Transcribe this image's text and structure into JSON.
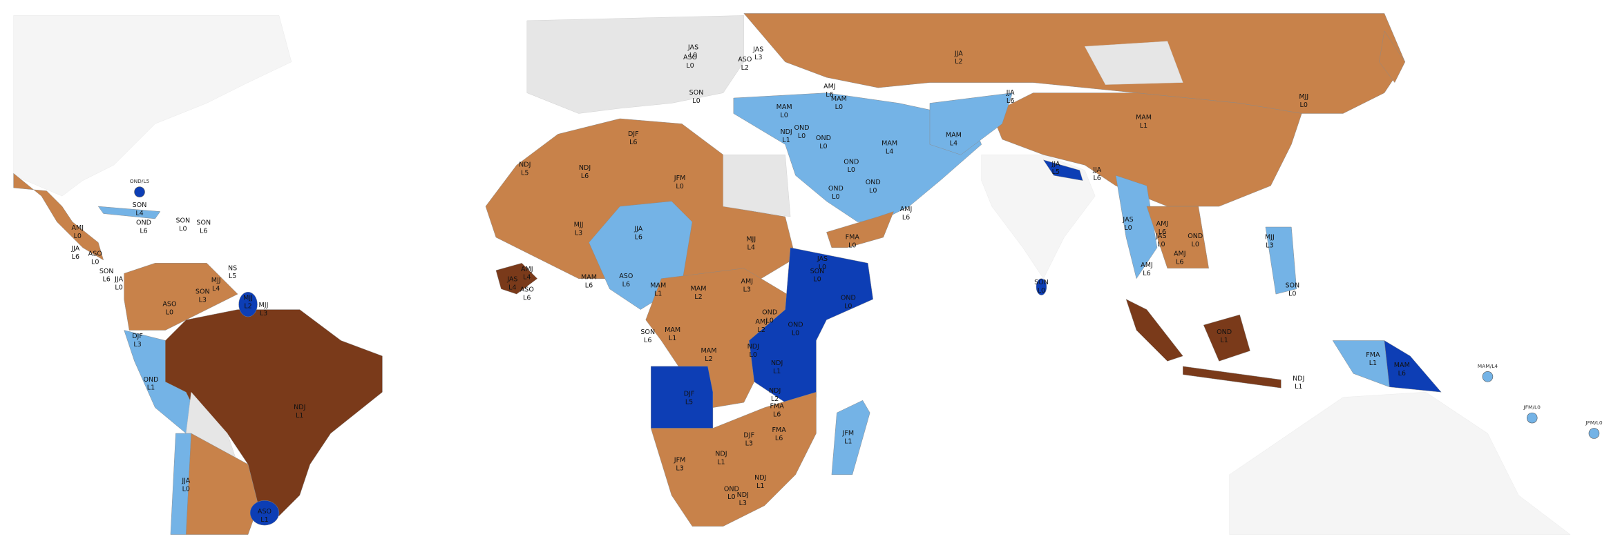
{
  "map_labels": [
    {
      "season": "JAS",
      "level": "L0"
    },
    {
      "season": "ASO",
      "level": "L0"
    },
    {
      "season": "JAS",
      "level": "L3"
    },
    {
      "season": "ASO",
      "level": "L2"
    },
    {
      "season": "JJA",
      "level": "L2"
    },
    {
      "season": "SON",
      "level": "L0"
    },
    {
      "season": "AMJ",
      "level": "L6"
    },
    {
      "season": "MAM",
      "level": "L0"
    },
    {
      "season": "MAM",
      "level": "L0"
    },
    {
      "season": "JJA",
      "level": "L6"
    },
    {
      "season": "MJJ",
      "level": "L0"
    },
    {
      "season": "MAM",
      "level": "L1"
    },
    {
      "season": "NDJ",
      "level": "L1"
    },
    {
      "season": "OND",
      "level": "L0"
    },
    {
      "season": "OND",
      "level": "L0"
    },
    {
      "season": "MAM",
      "level": "L4"
    },
    {
      "season": "MAM",
      "level": "L4"
    },
    {
      "season": "DJF",
      "level": "L6"
    },
    {
      "season": "NDJ",
      "level": "L5"
    },
    {
      "season": "NDJ",
      "level": "L6"
    },
    {
      "season": "JFM",
      "level": "L0"
    },
    {
      "season": "OND",
      "level": "L0"
    },
    {
      "season": "OND",
      "level": "L0"
    },
    {
      "season": "OND",
      "level": "L0"
    },
    {
      "season": "JJA",
      "level": "L5"
    },
    {
      "season": "JJA",
      "level": "L6"
    },
    {
      "text": "OND/L5"
    },
    {
      "season": "SON",
      "level": "L4"
    },
    {
      "season": "OND",
      "level": "L6"
    },
    {
      "season": "SON",
      "level": "L0"
    },
    {
      "season": "SON",
      "level": "L6"
    },
    {
      "season": "AMJ",
      "level": "L0"
    },
    {
      "season": "JJA",
      "level": "L6"
    },
    {
      "season": "ASO",
      "level": "L0"
    },
    {
      "season": "SON",
      "level": "L6"
    },
    {
      "season": "JJA",
      "level": "L0"
    },
    {
      "season": "MJJ",
      "level": "L3"
    },
    {
      "season": "JJA",
      "level": "L6"
    },
    {
      "season": "MJJ",
      "level": "L4"
    },
    {
      "season": "AMJ",
      "level": "L6"
    },
    {
      "season": "FMA",
      "level": "L0"
    },
    {
      "season": "JAS",
      "level": "L0"
    },
    {
      "season": "AMJ",
      "level": "L6"
    },
    {
      "season": "JAS",
      "level": "L0"
    },
    {
      "season": "OND",
      "level": "L0"
    },
    {
      "season": "MJJ",
      "level": "L3"
    },
    {
      "season": "AMJ",
      "level": "L6"
    },
    {
      "season": "AMJ",
      "level": "L6"
    },
    {
      "season": "JAS",
      "level": "L0"
    },
    {
      "season": "SON",
      "level": "L0"
    },
    {
      "season": "OND",
      "level": "L0"
    },
    {
      "season": "AMJ",
      "level": "L3"
    },
    {
      "season": "MAM",
      "level": "L2"
    },
    {
      "season": "MAM",
      "level": "L1"
    },
    {
      "season": "ASO",
      "level": "L6"
    },
    {
      "season": "MAM",
      "level": "L6"
    },
    {
      "season": "AMJ",
      "level": "L4"
    },
    {
      "season": "JAS",
      "level": "L4"
    },
    {
      "season": "ASO",
      "level": "L6"
    },
    {
      "season": "NS",
      "level": "L5"
    },
    {
      "season": "MJJ",
      "level": "L4"
    },
    {
      "season": "MJJ",
      "level": "L2"
    },
    {
      "season": "MJJ",
      "level": "L3"
    },
    {
      "season": "SON",
      "level": "L3"
    },
    {
      "season": "ASO",
      "level": "L0"
    },
    {
      "season": "SON",
      "level": "L0"
    },
    {
      "season": "SON",
      "level": "L0"
    },
    {
      "season": "SON",
      "level": "L6"
    },
    {
      "season": "MAM",
      "level": "L1"
    },
    {
      "season": "MAM",
      "level": "L2"
    },
    {
      "season": "OND",
      "level": "L0"
    },
    {
      "season": "AMJ",
      "level": "L2"
    },
    {
      "season": "OND",
      "level": "L0"
    },
    {
      "season": "NDJ",
      "level": "L0"
    },
    {
      "season": "NDJ",
      "level": "L1"
    },
    {
      "season": "OND",
      "level": "L1"
    },
    {
      "season": "DJF",
      "level": "L3"
    },
    {
      "season": "OND",
      "level": "L1"
    },
    {
      "season": "NDJ",
      "level": "L1"
    },
    {
      "season": "DJF",
      "level": "L5"
    },
    {
      "season": "NDJ",
      "level": "L2"
    },
    {
      "season": "FMA",
      "level": "L6"
    },
    {
      "season": "FMA",
      "level": "L6"
    },
    {
      "season": "FMA",
      "level": "L1"
    },
    {
      "season": "MAM",
      "level": "L6"
    },
    {
      "season": "NDJ",
      "level": "L1"
    },
    {
      "text": "MAM/L4"
    },
    {
      "text": "JFM/L0"
    },
    {
      "text": "JFM/L0"
    },
    {
      "season": "JFM",
      "level": "L1"
    },
    {
      "season": "DJF",
      "level": "L3"
    },
    {
      "season": "NDJ",
      "level": "L1"
    },
    {
      "season": "JFM",
      "level": "L3"
    },
    {
      "season": "NDJ",
      "level": "L1"
    },
    {
      "season": "OND",
      "level": "L0"
    },
    {
      "season": "NDJ",
      "level": "L3"
    },
    {
      "season": "JJA",
      "level": "L0"
    },
    {
      "season": "ASO",
      "level": "L1"
    }
  ]
}
